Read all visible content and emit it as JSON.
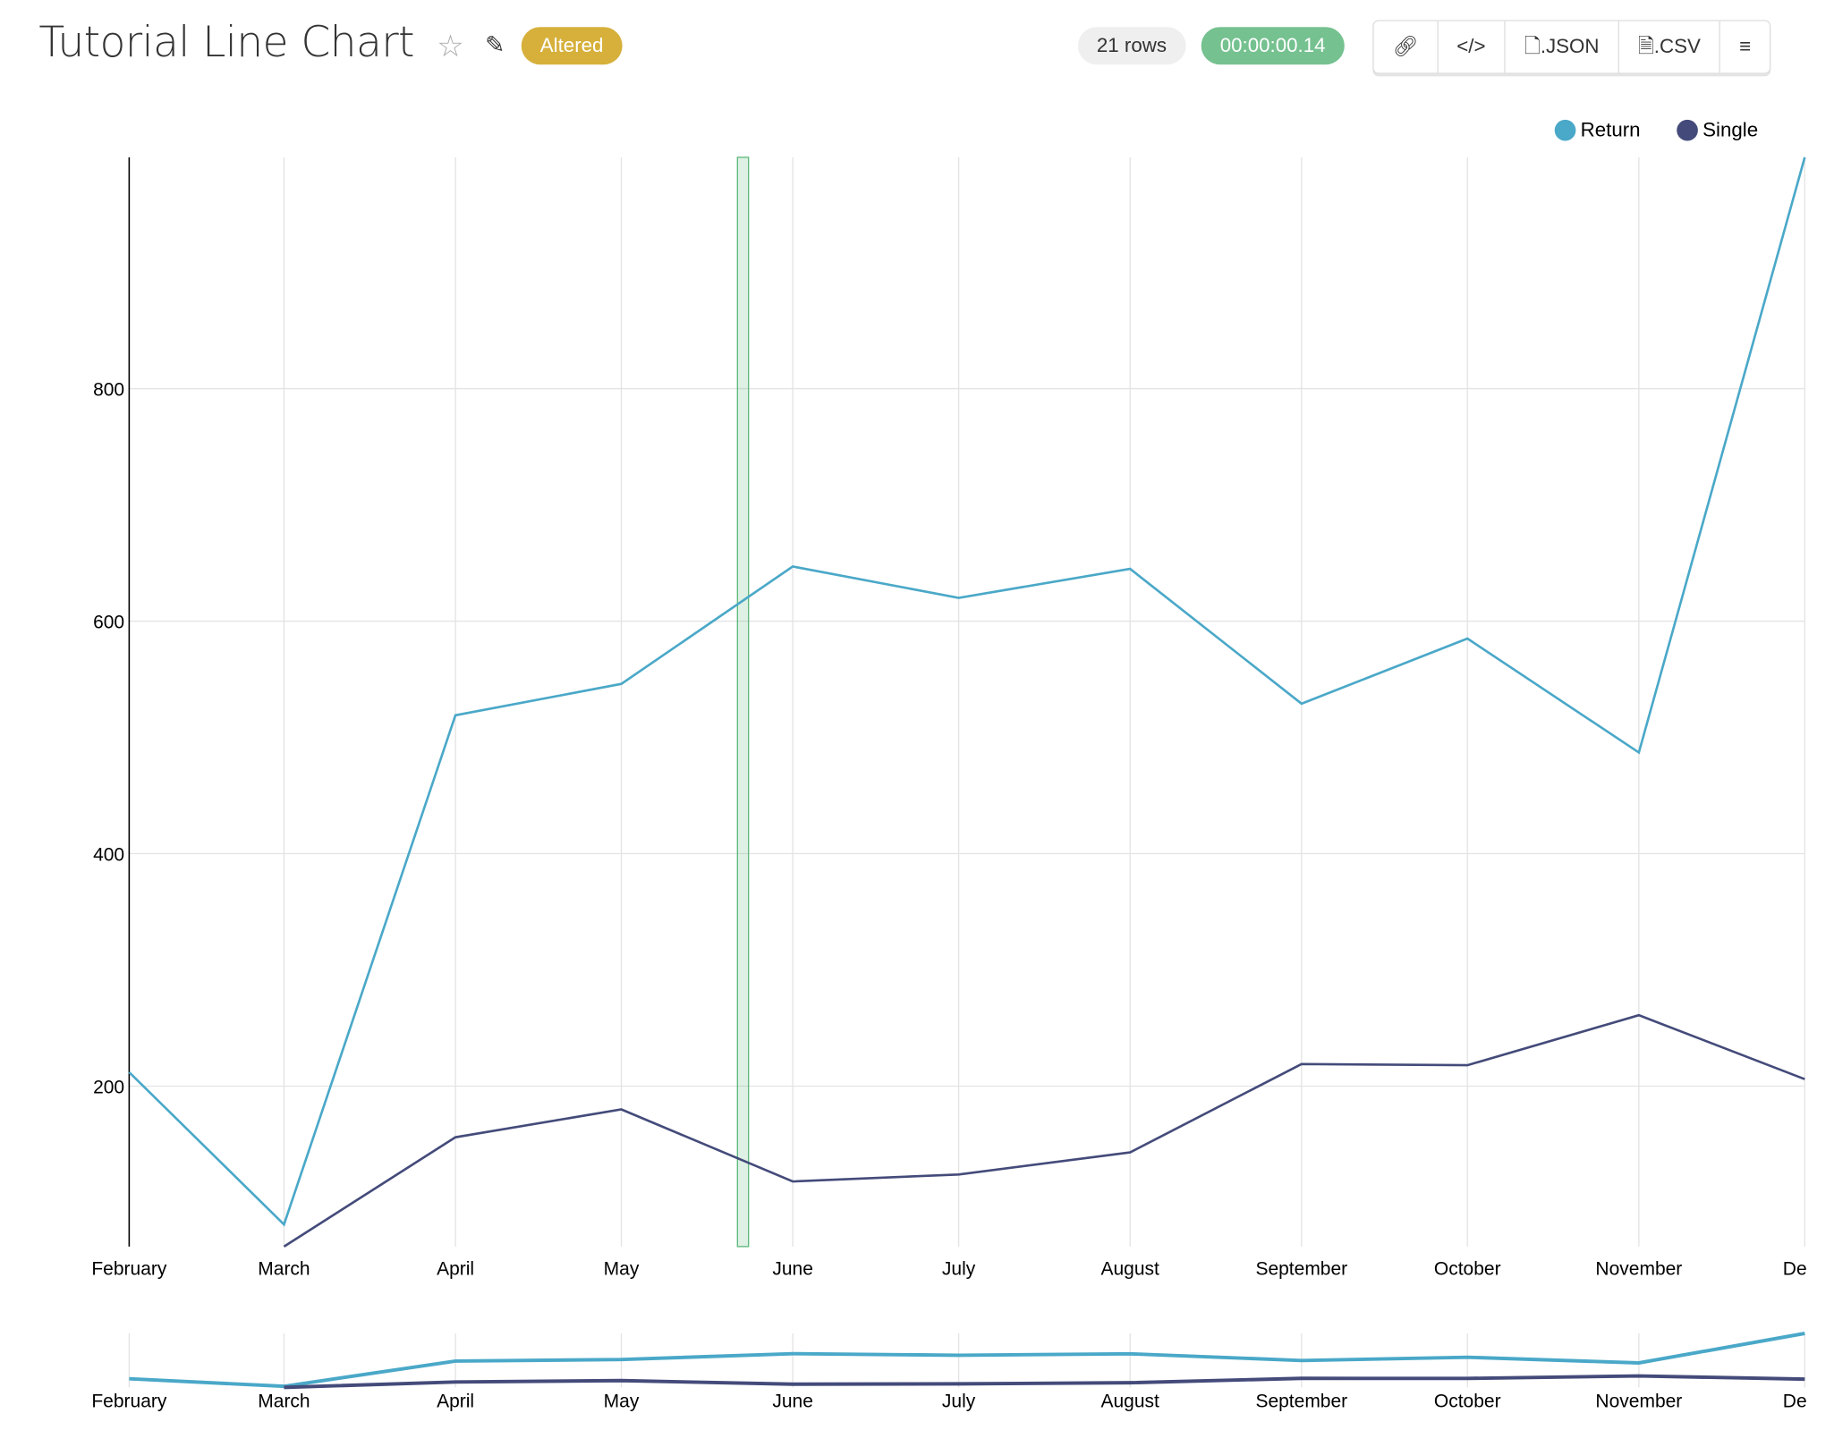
{
  "header": {
    "title": "Tutorial Line Chart",
    "status_badge": "Altered",
    "row_count": "21 rows",
    "timer": "00:00:00.14",
    "buttons": {
      "link": "link-icon",
      "embed": "</>",
      "json": ".JSON",
      "csv": ".CSV",
      "menu": "menu-icon"
    }
  },
  "chart_data": {
    "type": "line",
    "title": "",
    "xlabel": "",
    "ylabel": "",
    "x": [
      "2021-02-01",
      "2021-03-01",
      "2021-04-01",
      "2021-05-01",
      "2021-06-01",
      "2021-07-01",
      "2021-08-01",
      "2021-09-01",
      "2021-10-01",
      "2021-11-01",
      "2021-12-01"
    ],
    "x_tick_labels": [
      "February",
      "March",
      "April",
      "May",
      "June",
      "July",
      "August",
      "September",
      "October",
      "November",
      "Dece"
    ],
    "y_ticks": [
      200,
      400,
      600,
      800
    ],
    "ylim": [
      62,
      999
    ],
    "grid": true,
    "legend_position": "top-right",
    "series": [
      {
        "name": "Return",
        "color": "#4aa8c8",
        "values": [
          212,
          81,
          519,
          546,
          647,
          620,
          645,
          529,
          585,
          487,
          999
        ]
      },
      {
        "name": "Single",
        "color": "#444b7a",
        "values": [
          null,
          62,
          156,
          180,
          118,
          124,
          143,
          219,
          218,
          261,
          206
        ]
      }
    ],
    "highlight_range": [
      "2021-05-22",
      "2021-05-24"
    ],
    "highlight_color": "#5cb87a",
    "overview_brush": true
  }
}
